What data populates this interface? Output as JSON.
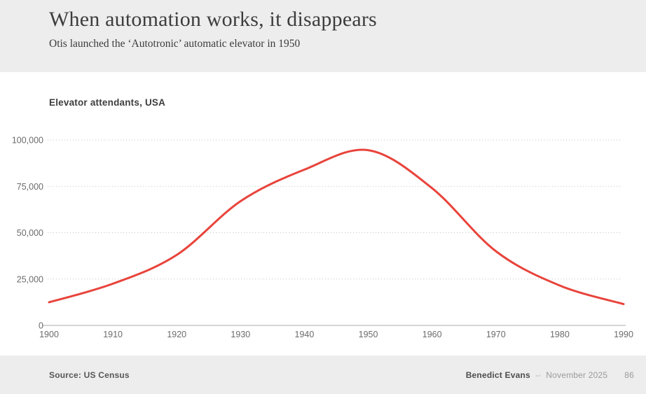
{
  "header": {
    "title": "When automation works, it disappears",
    "subtitle": "Otis launched the ‘Autotronic’ automatic elevator in 1950"
  },
  "chart_data": {
    "type": "line",
    "title": "Elevator attendants, USA",
    "x": [
      1900,
      1910,
      1920,
      1930,
      1940,
      1950,
      1960,
      1970,
      1980,
      1990
    ],
    "xtick_labels": [
      "1900",
      "1910",
      "1920",
      "1930",
      "1940",
      "1950",
      "1960",
      "1970",
      "1980",
      "1990"
    ],
    "series": [
      {
        "name": "Elevator attendants",
        "color": "#e8443c",
        "values": [
          12500,
          22500,
          38000,
          67000,
          84000,
          94500,
          74000,
          40000,
          21500,
          11500
        ]
      }
    ],
    "ylim": [
      0,
      100000
    ],
    "yticks": [
      0,
      25000,
      50000,
      75000,
      100000
    ],
    "ytick_labels": [
      "0",
      "25,000",
      "50,000",
      "75,000",
      "100,000"
    ],
    "grid": "horizontal-dotted",
    "legend": "none"
  },
  "footer": {
    "source": "Source: US Census",
    "author": "Benedict Evans",
    "separator": "--",
    "date": "November 2025",
    "page": "86"
  },
  "colors": {
    "line_red": "#e8443c",
    "band_background": "#ededed",
    "gridline": "#c9c9c9",
    "axis": "#c6c6c6",
    "title_text": "#3d3d3d",
    "tick_text": "#6b6b6b"
  }
}
